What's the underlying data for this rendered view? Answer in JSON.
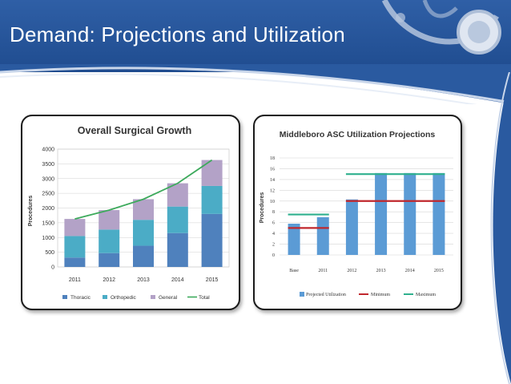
{
  "slide": {
    "title": "Demand: Projections and Utilization"
  },
  "colors": {
    "header_blue": "#1f4c8f",
    "thoracic": "#4f81bd",
    "orthopedic": "#4bacc6",
    "general": "#b3a2c7",
    "total_line": "#3daa5c",
    "utilization_bar": "#5b9bd5",
    "minimum": "#c0272d",
    "maximum": "#2fb08e"
  },
  "chart_data": [
    {
      "type": "bar",
      "stacked": true,
      "title": "Overall Surgical Growth",
      "xlabel": "",
      "ylabel": "Procedures",
      "ylim": [
        0,
        4000
      ],
      "yticks": [
        0,
        500,
        1000,
        1500,
        2000,
        2500,
        3000,
        3500,
        4000
      ],
      "categories": [
        "2011",
        "2012",
        "2013",
        "2014",
        "2015"
      ],
      "series": [
        {
          "name": "Thoracic",
          "values": [
            320,
            470,
            720,
            1150,
            1800
          ]
        },
        {
          "name": "Orthopedic",
          "values": [
            730,
            800,
            880,
            900,
            950
          ]
        },
        {
          "name": "General",
          "values": [
            580,
            660,
            700,
            790,
            880
          ]
        }
      ],
      "line_series": {
        "name": "Total",
        "values": [
          1630,
          1930,
          2300,
          2840,
          3630
        ]
      },
      "grid": true,
      "legend": "bottom"
    },
    {
      "type": "bar",
      "title": "Middleboro ASC Utilization Projections",
      "xlabel": "",
      "ylabel": "Procedures",
      "ylim": [
        0,
        18
      ],
      "yticks": [
        0,
        2,
        4,
        6,
        8,
        10,
        12,
        14,
        16,
        18
      ],
      "categories": [
        "Base",
        "2011",
        "2012",
        "2013",
        "2014",
        "2015"
      ],
      "series": [
        {
          "name": "Projected Utilization",
          "values": [
            5.8,
            7.0,
            10.3,
            15.2,
            15.2,
            15.2
          ]
        }
      ],
      "line_series": [
        {
          "name": "Minimum",
          "segments": [
            {
              "from": "Base",
              "to": "2011",
              "value": 5.0
            },
            {
              "from": "2012",
              "to": "2015",
              "value": 10.0
            }
          ]
        },
        {
          "name": "Maximum",
          "segments": [
            {
              "from": "Base",
              "to": "2011",
              "value": 7.5
            },
            {
              "from": "2012",
              "to": "2015",
              "value": 15.0
            }
          ]
        }
      ],
      "grid": true,
      "legend": "bottom"
    }
  ]
}
